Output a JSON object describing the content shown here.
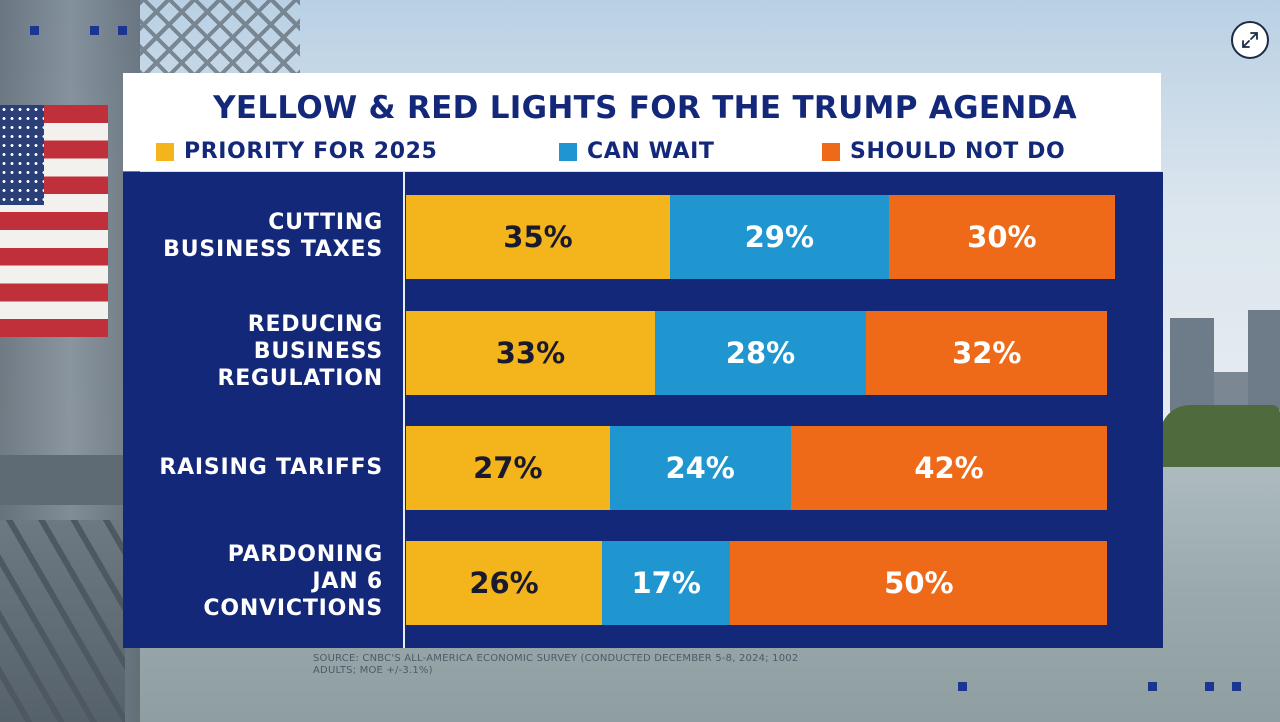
{
  "colors": {
    "priority": "#f3b51b",
    "wait": "#1f96cf",
    "not_do": "#ee6a18",
    "navy": "#14287a"
  },
  "icons": {
    "expand": "expand-arrows-icon"
  },
  "chart_data": {
    "type": "bar",
    "orientation": "horizontal",
    "stacked": true,
    "title": "YELLOW & RED LIGHTS FOR THE TRUMP AGENDA",
    "categories": [
      "CUTTING\nBUSINESS TAXES",
      "REDUCING\nBUSINESS\nREGULATION",
      "RAISING TARIFFS",
      "PARDONING\nJAN 6\nCONVICTIONS"
    ],
    "series": [
      {
        "name": "PRIORITY FOR 2025",
        "values": [
          35,
          33,
          27,
          26
        ],
        "labels": [
          "35%",
          "33%",
          "27%",
          "26%"
        ]
      },
      {
        "name": "CAN WAIT",
        "values": [
          29,
          28,
          24,
          17
        ],
        "labels": [
          "29%",
          "28%",
          "24%",
          "17%"
        ]
      },
      {
        "name": "SHOULD NOT DO",
        "values": [
          30,
          32,
          42,
          50
        ],
        "labels": [
          "30%",
          "32%",
          "42%",
          "50%"
        ]
      }
    ],
    "xlim": [
      0,
      94
    ],
    "xlabel": "",
    "ylabel": "",
    "source": "SOURCE: CNBC'S ALL-AMERICA ECONOMIC SURVEY (CONDUCTED DECEMBER 5-8, 2024; 1002 ADULTS; MOE +/-3.1%)"
  }
}
